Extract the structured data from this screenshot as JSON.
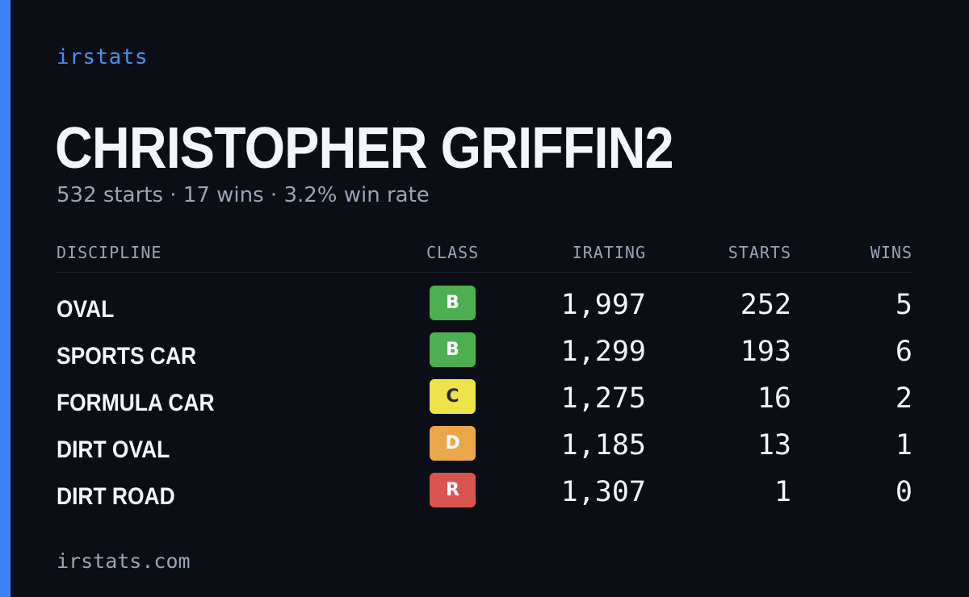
{
  "brand": "irstats",
  "driver_name": "CHRISTOPHER GRIFFIN2",
  "summary": "532 starts · 17 wins · 3.2% win rate",
  "table": {
    "headers": {
      "discipline": "DISCIPLINE",
      "class": "CLASS",
      "irating": "IRATING",
      "starts": "STARTS",
      "wins": "WINS"
    },
    "rows": [
      {
        "discipline": "OVAL",
        "class": "B",
        "class_color": "#4caf50",
        "class_text_color": "#ffffff",
        "irating": "1,997",
        "starts": "252",
        "wins": "5"
      },
      {
        "discipline": "SPORTS CAR",
        "class": "B",
        "class_color": "#4caf50",
        "class_text_color": "#ffffff",
        "irating": "1,299",
        "starts": "193",
        "wins": "6"
      },
      {
        "discipline": "FORMULA CAR",
        "class": "C",
        "class_color": "#ede34a",
        "class_text_color": "#2a2a2a",
        "irating": "1,275",
        "starts": "16",
        "wins": "2"
      },
      {
        "discipline": "DIRT OVAL",
        "class": "D",
        "class_color": "#eba74c",
        "class_text_color": "#ffffff",
        "irating": "1,185",
        "starts": "13",
        "wins": "1"
      },
      {
        "discipline": "DIRT ROAD",
        "class": "R",
        "class_color": "#d9534f",
        "class_text_color": "#ffffff",
        "irating": "1,307",
        "starts": "1",
        "wins": "0"
      }
    ]
  },
  "footer_url": "irstats.com",
  "colors": {
    "background": "#0b0e14",
    "accent": "#3b82f6",
    "brand": "#4b8df8",
    "muted": "#9aa3b5",
    "text": "#f4f6fb"
  }
}
